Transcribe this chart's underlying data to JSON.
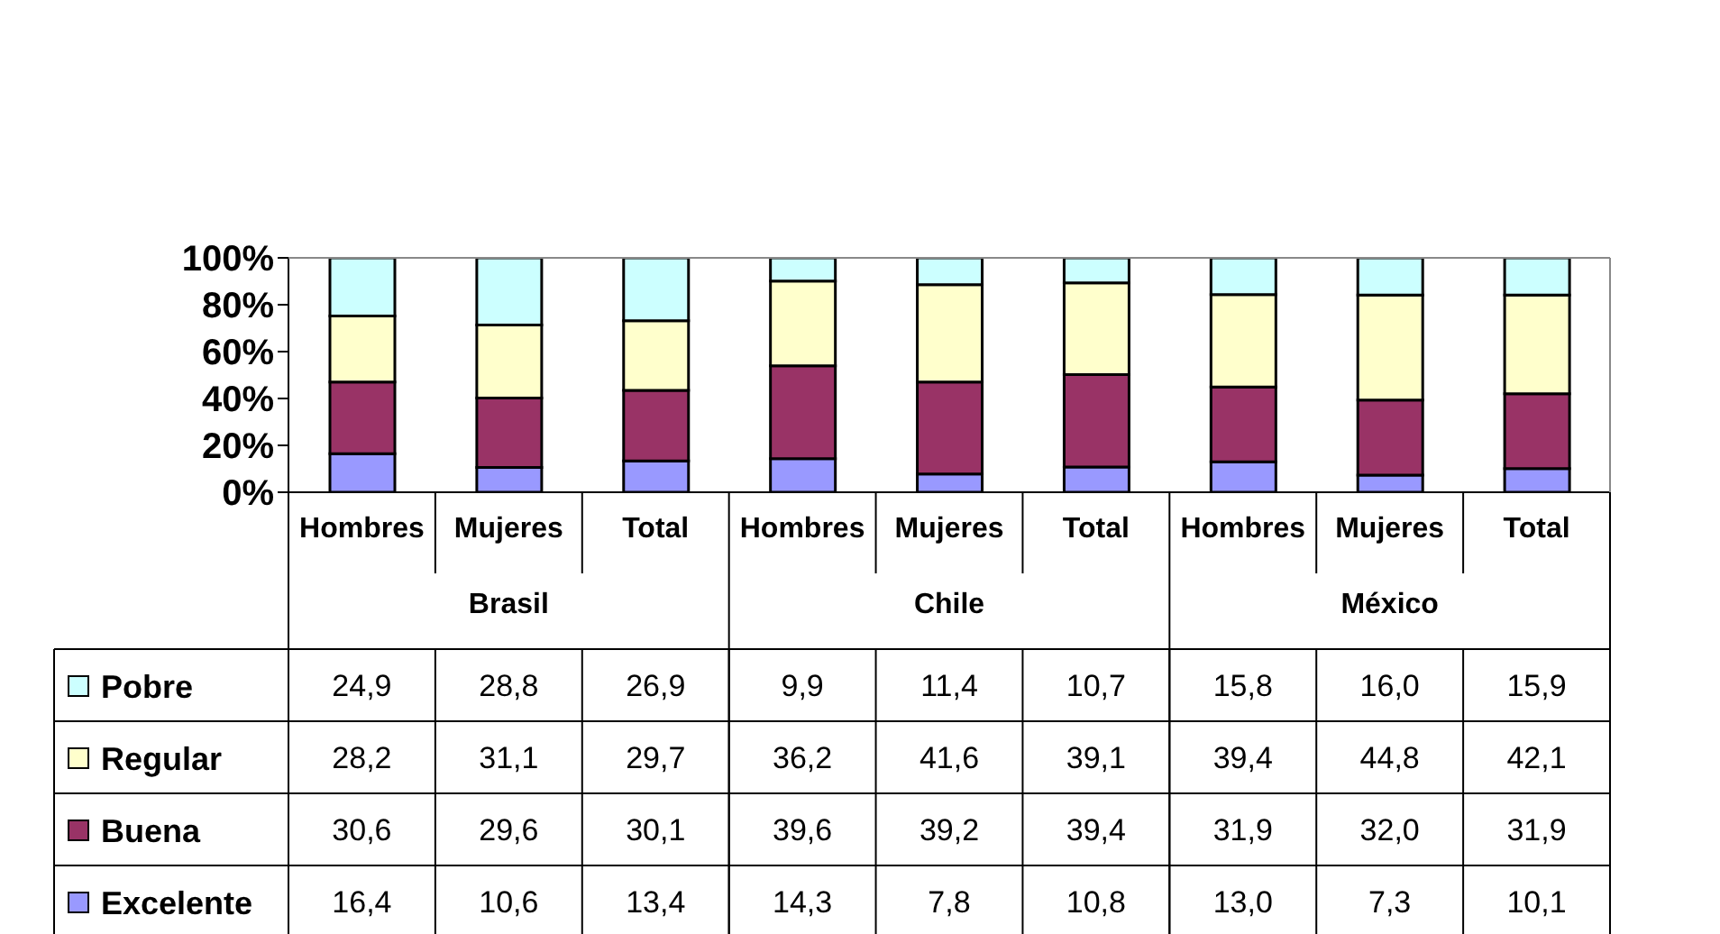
{
  "chart_data": {
    "type": "bar",
    "stacked": true,
    "categories": [
      "Hombres",
      "Mujeres",
      "Total",
      "Hombres",
      "Mujeres",
      "Total",
      "Hombres",
      "Mujeres",
      "Total"
    ],
    "annotations": [
      "Brasil",
      "Chile",
      "México"
    ],
    "series": [
      {
        "name": "Excelente",
        "color": "#9999ff",
        "values": [
          16.4,
          10.6,
          13.4,
          14.3,
          7.8,
          10.8,
          13.0,
          7.3,
          10.1
        ],
        "value_labels": [
          "16,4",
          "10,6",
          "13,4",
          "14,3",
          "7,8",
          "10,8",
          "13,0",
          "7,3",
          "10,1"
        ]
      },
      {
        "name": "Buena",
        "color": "#993366",
        "values": [
          30.6,
          29.6,
          30.1,
          39.6,
          39.2,
          39.4,
          31.9,
          32.0,
          31.9
        ],
        "value_labels": [
          "30,6",
          "29,6",
          "30,1",
          "39,6",
          "39,2",
          "39,4",
          "31,9",
          "32,0",
          "31,9"
        ]
      },
      {
        "name": "Regular",
        "color": "#ffffcc",
        "values": [
          28.2,
          31.1,
          29.7,
          36.2,
          41.6,
          39.1,
          39.4,
          44.8,
          42.1
        ],
        "value_labels": [
          "28,2",
          "31,1",
          "29,7",
          "36,2",
          "41,6",
          "39,1",
          "39,4",
          "44,8",
          "42,1"
        ]
      },
      {
        "name": "Pobre",
        "color": "#ccffff",
        "values": [
          24.9,
          28.8,
          26.9,
          9.9,
          11.4,
          10.7,
          15.8,
          16.0,
          15.9
        ],
        "value_labels": [
          "24,9",
          "28,8",
          "26,9",
          "9,9",
          "11,4",
          "10,7",
          "15,8",
          "16,0",
          "15,9"
        ]
      }
    ],
    "ylim": [
      0,
      100
    ],
    "yticks": [
      {
        "value": 0,
        "label": "0%"
      },
      {
        "value": 20,
        "label": "20%"
      },
      {
        "value": 40,
        "label": "40%"
      },
      {
        "value": 60,
        "label": "60%"
      },
      {
        "value": 80,
        "label": "80%"
      },
      {
        "value": 100,
        "label": "100%"
      }
    ],
    "grid": false,
    "legend": "bottom"
  }
}
